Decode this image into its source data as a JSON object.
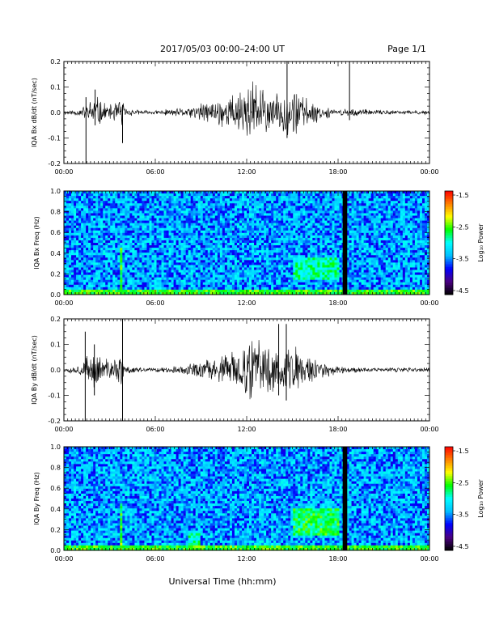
{
  "header": {
    "title": "2017/05/03  00:00–24:00 UT",
    "page": "Page 1/1"
  },
  "x_axis": {
    "label": "Universal Time (hh:mm)",
    "tick_labels": [
      "00:00",
      "06:00",
      "12:00",
      "18:00",
      "00:00"
    ],
    "range_hours": [
      0,
      24
    ]
  },
  "colorbar": {
    "tick_labels": [
      "-1.5",
      "-2.5",
      "-3.5",
      "-4.5"
    ],
    "label": "Log₁₀ Power",
    "range": [
      -4.5,
      -1.5
    ],
    "colors": [
      "#000000",
      "#4b0082",
      "#0000ff",
      "#00bfff",
      "#00ffff",
      "#00ff00",
      "#ffff00",
      "#ff8000",
      "#ff0000"
    ]
  },
  "chart_data": [
    {
      "type": "line",
      "ylabel": "IQA Bx dB/dt (nT/sec)",
      "ylim": [
        -0.2,
        0.2
      ],
      "ytick_labels": [
        "0.2",
        "0.1",
        "0.0",
        "-0.1",
        "-0.2"
      ],
      "xlim": [
        0,
        24
      ],
      "envelope": {
        "x_hours": [
          0,
          1,
          1.5,
          2,
          3,
          3.8,
          4,
          5,
          6,
          7,
          8,
          9,
          10,
          11,
          12,
          12.5,
          13,
          14,
          14.5,
          15,
          16,
          17,
          18,
          18.5,
          19,
          20,
          22,
          24
        ],
        "amplitude": [
          0.01,
          0.015,
          0.04,
          0.08,
          0.03,
          0.07,
          0.02,
          0.01,
          0.01,
          0.015,
          0.02,
          0.04,
          0.06,
          0.08,
          0.12,
          0.15,
          0.1,
          0.08,
          0.1,
          0.12,
          0.06,
          0.03,
          0.01,
          0.02,
          0.02,
          0.012,
          0.01,
          0.01
        ]
      },
      "spikes": [
        {
          "hour": 1.45,
          "min": -0.2,
          "max": 0.06
        },
        {
          "hour": 2.05,
          "min": -0.05,
          "max": 0.09
        },
        {
          "hour": 3.85,
          "min": -0.12,
          "max": 0.03
        },
        {
          "hour": 14.65,
          "min": -0.1,
          "max": 0.22
        },
        {
          "hour": 18.75,
          "min": -0.03,
          "max": 0.21
        }
      ]
    },
    {
      "type": "heatmap",
      "ylabel": "IQA Bx Freq (Hz)",
      "ylim": [
        0.0,
        1.0
      ],
      "ytick_labels": [
        "1.0",
        "0.8",
        "0.6",
        "0.4",
        "0.2",
        "0.0"
      ],
      "xlim": [
        0,
        24
      ],
      "background_log_power": -3.4,
      "data_gap_hours": [
        18.3,
        18.6
      ],
      "features": [
        {
          "hours": [
            0,
            24
          ],
          "freq_max_hz": 0.05,
          "log_power": -2.6
        },
        {
          "hours": [
            15.0,
            18.0
          ],
          "freq_hz": [
            0.15,
            0.35
          ],
          "log_power": -2.9
        },
        {
          "hours": [
            3.6,
            3.9
          ],
          "freq_hz": [
            0.0,
            0.45
          ],
          "log_power": -2.6
        }
      ]
    },
    {
      "type": "line",
      "ylabel": "IQA By dB/dt (nT/sec)",
      "ylim": [
        -0.2,
        0.2
      ],
      "ytick_labels": [
        "0.2",
        "0.1",
        "0.0",
        "-0.1",
        "-0.2"
      ],
      "xlim": [
        0,
        24
      ],
      "envelope": {
        "x_hours": [
          0,
          1,
          1.5,
          2,
          3,
          3.8,
          4,
          5,
          6,
          7,
          8,
          9,
          10,
          11,
          12,
          12.5,
          13,
          14,
          14.5,
          15,
          16,
          17,
          18,
          18.5,
          19,
          20,
          22,
          24
        ],
        "amplitude": [
          0.01,
          0.02,
          0.06,
          0.08,
          0.04,
          0.08,
          0.02,
          0.01,
          0.01,
          0.015,
          0.02,
          0.04,
          0.06,
          0.08,
          0.12,
          0.15,
          0.12,
          0.1,
          0.12,
          0.12,
          0.07,
          0.04,
          0.015,
          0.02,
          0.015,
          0.01,
          0.01,
          0.01
        ]
      },
      "spikes": [
        {
          "hour": 1.4,
          "min": -0.2,
          "max": 0.15
        },
        {
          "hour": 2.0,
          "min": -0.1,
          "max": 0.1
        },
        {
          "hour": 3.85,
          "min": -0.22,
          "max": 0.2
        },
        {
          "hour": 14.1,
          "min": -0.1,
          "max": 0.18
        },
        {
          "hour": 14.6,
          "min": -0.12,
          "max": 0.18
        }
      ]
    },
    {
      "type": "heatmap",
      "ylabel": "IQA By Freq (Hz)",
      "ylim": [
        0.0,
        1.0
      ],
      "ytick_labels": [
        "1.0",
        "0.8",
        "0.6",
        "0.4",
        "0.2",
        "0.0"
      ],
      "xlim": [
        0,
        24
      ],
      "background_log_power": -3.4,
      "data_gap_hours": [
        18.3,
        18.6
      ],
      "features": [
        {
          "hours": [
            0,
            24
          ],
          "freq_max_hz": 0.05,
          "log_power": -2.6
        },
        {
          "hours": [
            15.0,
            18.0
          ],
          "freq_hz": [
            0.15,
            0.4
          ],
          "log_power": -2.7
        },
        {
          "hours": [
            3.6,
            3.9
          ],
          "freq_hz": [
            0.0,
            0.45
          ],
          "log_power": -2.6
        },
        {
          "hours": [
            8.2,
            8.9
          ],
          "freq_hz": [
            0.0,
            0.2
          ],
          "log_power": -2.9
        }
      ]
    }
  ]
}
